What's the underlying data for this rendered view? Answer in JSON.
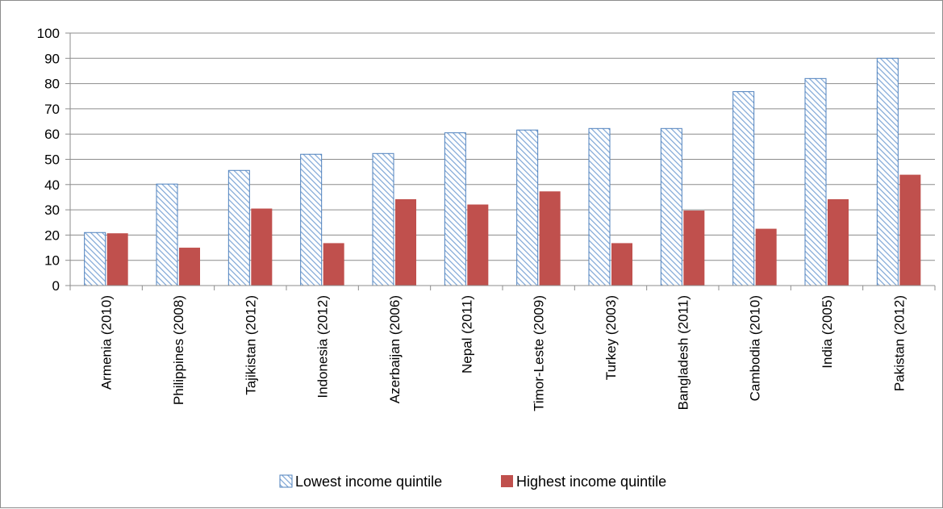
{
  "chart_data": {
    "type": "bar",
    "title": "",
    "xlabel": "",
    "ylabel": "",
    "ylim": [
      0,
      100
    ],
    "yticks": [
      0,
      10,
      20,
      30,
      40,
      50,
      60,
      70,
      80,
      90,
      100
    ],
    "grid": true,
    "legend_position": "bottom",
    "categories": [
      "Armenia (2010)",
      "Philippines (2008)",
      "Tajikistan (2012)",
      "Indonesia (2012)",
      "Azerbaijan (2006)",
      "Nepal (2011)",
      "Timor-Leste (2009)",
      "Turkey (2003)",
      "Bangladesh (2011)",
      "Cambodia (2010)",
      "India (2005)",
      "Pakistan (2012)"
    ],
    "series": [
      {
        "name": "Lowest income quintile",
        "color": "#4f81bd",
        "fill": "hatched",
        "values": [
          21,
          40.2,
          45.6,
          52,
          52.3,
          60.5,
          61.6,
          62.2,
          62.2,
          76.8,
          82,
          90
        ]
      },
      {
        "name": "Highest income quintile",
        "color": "#c0504d",
        "fill": "solid",
        "values": [
          20.7,
          15,
          30.5,
          16.8,
          34.2,
          32.1,
          37.3,
          16.8,
          29.7,
          22.5,
          34.2,
          43.9
        ]
      }
    ]
  }
}
